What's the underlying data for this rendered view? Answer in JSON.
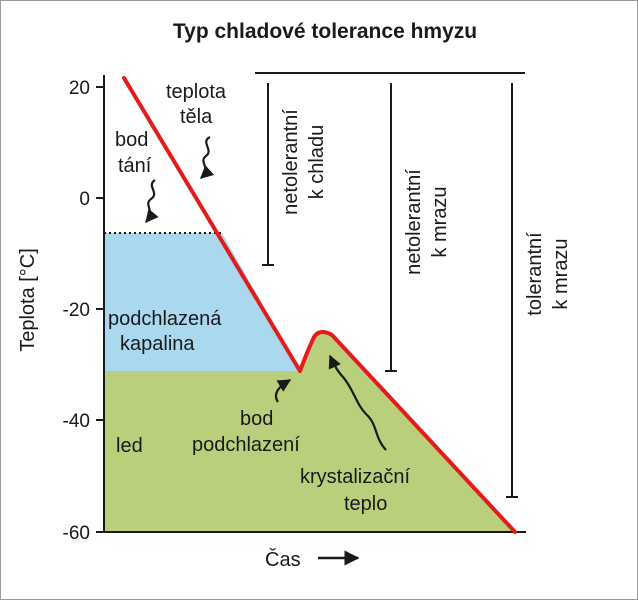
{
  "title": "Typ chladové tolerance hmyzu",
  "y_axis": {
    "label": "Teplota [°C]",
    "ticks": [
      "20",
      "0",
      "-20",
      "-40",
      "-60"
    ]
  },
  "x_axis": {
    "label": "Čas"
  },
  "colors": {
    "curve": "#e31b1b",
    "supercooled_fill": "#a9d8ef",
    "ice_fill": "#b9cf7c",
    "line": "#1a1a1a"
  },
  "annotations": {
    "body_temp": [
      "teplota",
      "těla"
    ],
    "melting_point": [
      "bod",
      "tání"
    ],
    "supercooled": [
      "podchlazená",
      "kapalina"
    ],
    "ice": "led",
    "supercooling_point": [
      "bod",
      "podchlazení"
    ],
    "crystallization_heat": [
      "krystalizační",
      "teplo"
    ]
  },
  "categories": {
    "chill_intolerant": [
      "netolerantní",
      "k chladu"
    ],
    "freeze_intolerant": [
      "netolerantní",
      "k mrazu"
    ],
    "freeze_tolerant": [
      "tolerantní",
      "k mrazu"
    ]
  }
}
